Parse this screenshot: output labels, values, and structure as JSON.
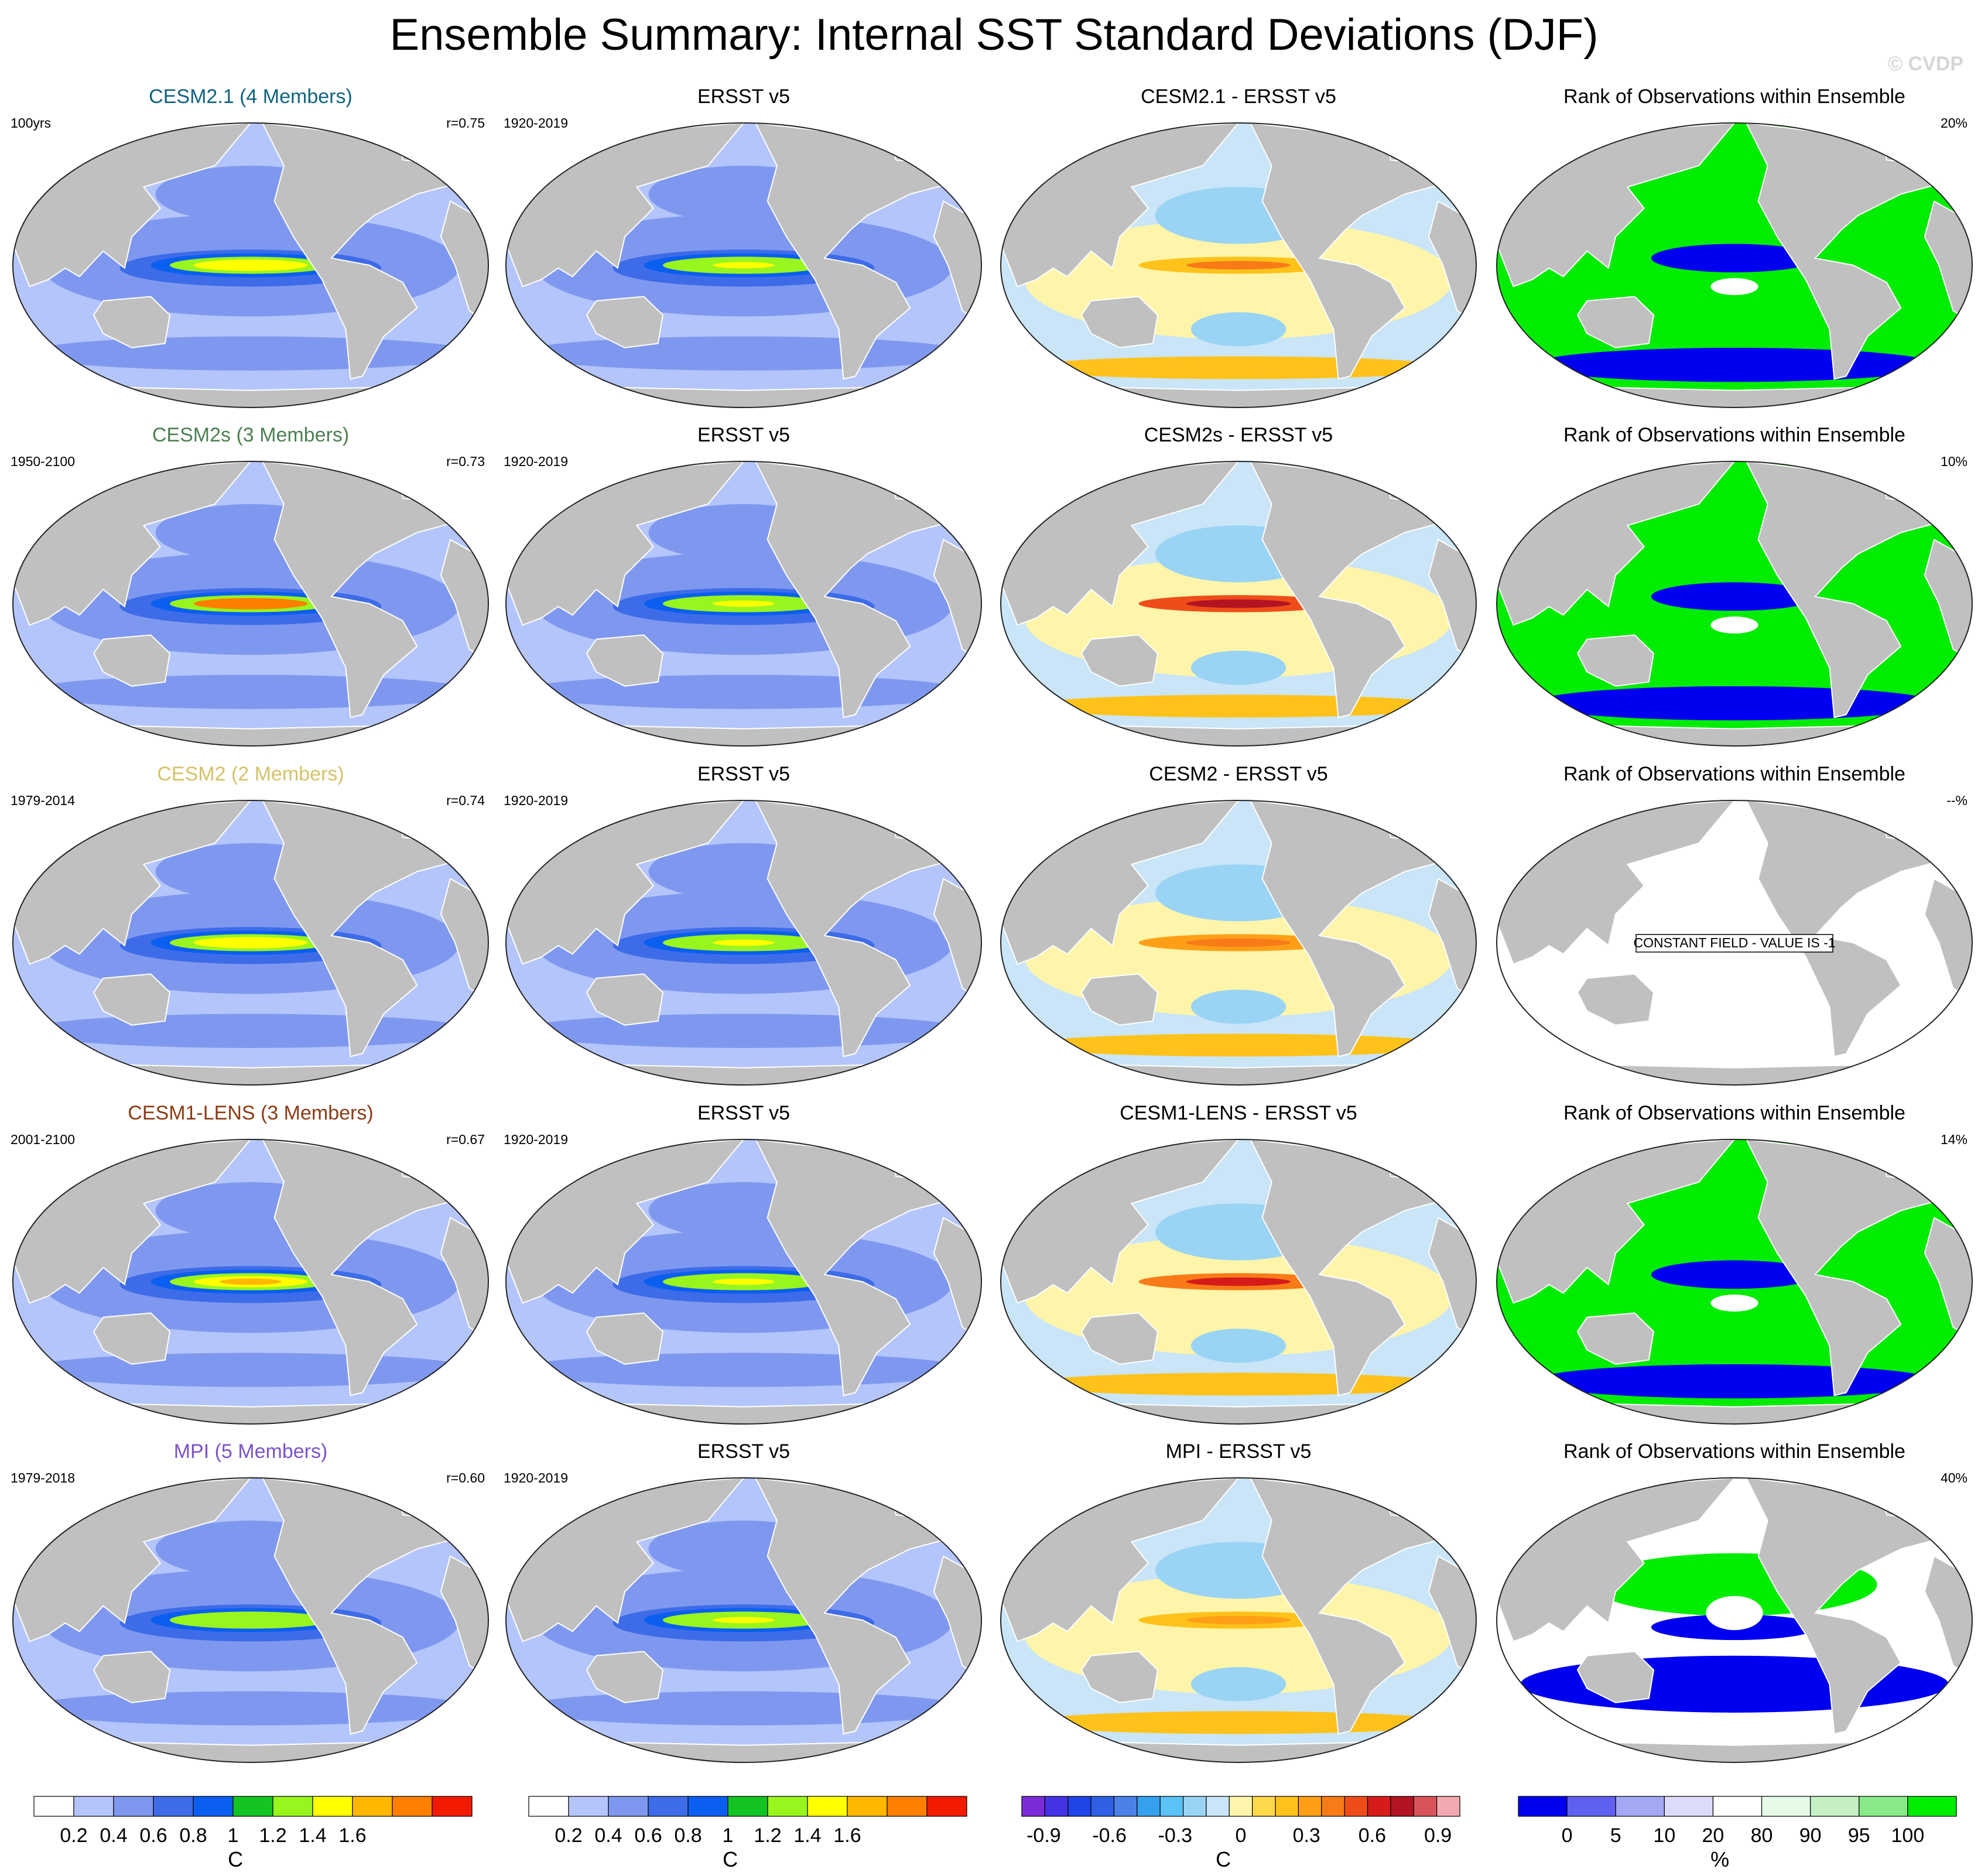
{
  "title": "Ensemble Summary: Internal SST Standard Deviations (DJF)",
  "credit": "© CVDP",
  "colors": {
    "land": "#c0c0c0",
    "coast": "#ffffff",
    "sd_levels": [
      "#ffffff",
      "#b4c5fb",
      "#7f98ef",
      "#3e6ce8",
      "#0a5ff0",
      "#13c423",
      "#99f51e",
      "#ffff00",
      "#ffb700",
      "#ff7f00",
      "#f21a00"
    ],
    "diff_levels": [
      "#7b2cd8",
      "#4333e4",
      "#1f44e8",
      "#2f5fe4",
      "#4c82e8",
      "#35a1ee",
      "#5bc2f5",
      "#9ad4f4",
      "#c9e5f7",
      "#fff5aa",
      "#ffd94c",
      "#ffc21a",
      "#ff9f18",
      "#f87b18",
      "#ee4d1a",
      "#d61c1a",
      "#b21422",
      "#d8545a",
      "#f2aab0"
    ],
    "rank_levels": [
      "#0000f0",
      "#6060f0",
      "#a4a8f4",
      "#dcdcfa",
      "#ffffff",
      "#e6fae6",
      "#c4f0c4",
      "#88ea88",
      "#00ec00"
    ]
  },
  "chart_data": {
    "type": "map-panel-grid",
    "rows": [
      {
        "model": "CESM2.1 (4 Members)",
        "model_color": "#11627e",
        "period": "100yrs",
        "r": "r=0.75",
        "obs_title": "ERSST v5",
        "obs_period": "1920-2019",
        "diff_title": "CESM2.1 - ERSST v5",
        "rank_title": "Rank of Observations within Ensemble",
        "rank_pct": "20%",
        "model_peak_sd": 1.3,
        "obs_peak_sd": 1.2,
        "diff_tropics": 0.25,
        "rank_fill": "green-blue"
      },
      {
        "model": "CESM2s (3 Members)",
        "model_color": "#4e7f52",
        "period": "1950-2100",
        "r": "r=0.73",
        "obs_title": "ERSST v5",
        "obs_period": "1920-2019",
        "diff_title": "CESM2s - ERSST v5",
        "rank_title": "Rank of Observations within Ensemble",
        "rank_pct": "10%",
        "model_peak_sd": 1.7,
        "obs_peak_sd": 1.2,
        "diff_tropics": 0.5,
        "rank_fill": "green-blue"
      },
      {
        "model": "CESM2 (2 Members)",
        "model_color": "#d6c269",
        "period": "1979-2014",
        "r": "r=0.74",
        "obs_title": "ERSST v5",
        "obs_period": "1920-2019",
        "diff_title": "CESM2 - ERSST v5",
        "rank_title": "Rank of Observations within Ensemble",
        "rank_pct": "--%",
        "rank_note": "CONSTANT FIELD - VALUE IS -1",
        "model_peak_sd": 1.3,
        "obs_peak_sd": 1.2,
        "diff_tropics": 0.3,
        "rank_fill": "constant"
      },
      {
        "model": "CESM1-LENS (3 Members)",
        "model_color": "#8b3c15",
        "period": "2001-2100",
        "r": "r=0.67",
        "obs_title": "ERSST v5",
        "obs_period": "1920-2019",
        "diff_title": "CESM1-LENS - ERSST v5",
        "rank_title": "Rank of Observations within Ensemble",
        "rank_pct": "14%",
        "model_peak_sd": 1.4,
        "obs_peak_sd": 1.2,
        "diff_tropics": 0.4,
        "rank_fill": "green-blue"
      },
      {
        "model": "MPI (5 Members)",
        "model_color": "#7b53c9",
        "period": "1979-2018",
        "r": "r=0.60",
        "obs_title": "ERSST v5",
        "obs_period": "1920-2019",
        "diff_title": "MPI - ERSST v5",
        "rank_title": "Rank of Observations within Ensemble",
        "rank_pct": "40%",
        "model_peak_sd": 1.1,
        "obs_peak_sd": 1.2,
        "diff_tropics": 0.2,
        "rank_fill": "mixed"
      }
    ],
    "colorbars": [
      {
        "id": "sd-model",
        "unit": "C",
        "labels": [
          "0.2",
          "0.4",
          "0.6",
          "0.8",
          "1",
          "1.2",
          "1.4",
          "1.6"
        ],
        "levels": [
          0.2,
          0.4,
          0.6,
          0.8,
          1.0,
          1.2,
          1.4,
          1.6
        ]
      },
      {
        "id": "sd-obs",
        "unit": "C",
        "labels": [
          "0.2",
          "0.4",
          "0.6",
          "0.8",
          "1",
          "1.2",
          "1.4",
          "1.6"
        ],
        "levels": [
          0.2,
          0.4,
          0.6,
          0.8,
          1.0,
          1.2,
          1.4,
          1.6
        ]
      },
      {
        "id": "diff",
        "unit": "C",
        "labels": [
          "-0.9",
          "-0.6",
          "-0.3",
          "0",
          "0.3",
          "0.6",
          "0.9"
        ],
        "levels": [
          -0.9,
          -0.6,
          -0.3,
          0,
          0.3,
          0.6,
          0.9
        ]
      },
      {
        "id": "rank",
        "unit": "%",
        "labels": [
          "0",
          "5",
          "10",
          "20",
          "80",
          "90",
          "95",
          "100"
        ],
        "levels": [
          0,
          5,
          10,
          20,
          80,
          90,
          95,
          100
        ]
      }
    ]
  }
}
